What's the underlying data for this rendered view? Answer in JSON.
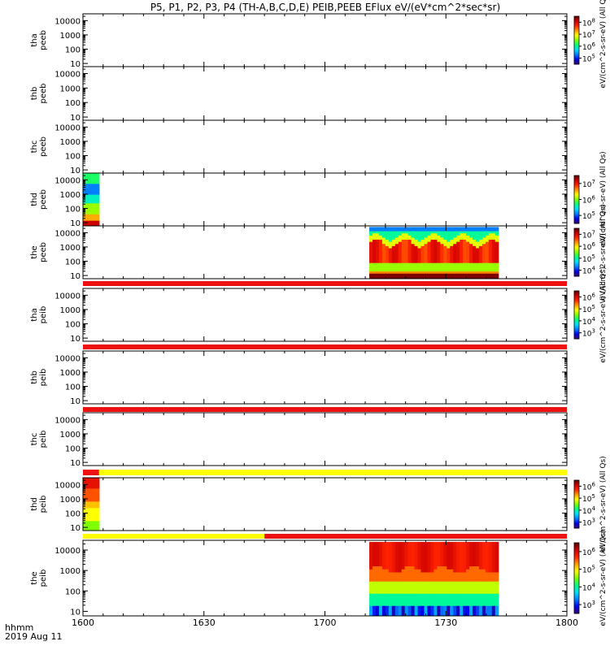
{
  "chart_data": {
    "type": "heatmap",
    "title": "P5, P1, P2, P3, P4 (TH-A,B,C,D,E) PEIB,PEEB EFlux eV/(eV*cm^2*sec*sr)",
    "x_axis": {
      "ticks": [
        "1600",
        "1630",
        "1700",
        "1730",
        "1800"
      ],
      "unit_label": "hhmm",
      "date_label": "2019 Aug 11",
      "range_minutes": [
        0,
        120
      ]
    },
    "y_axis": {
      "ticks": [
        "10",
        "100",
        "1000",
        "10000"
      ],
      "scale": "log",
      "unit": "eV"
    },
    "panels": [
      {
        "probe": "tha",
        "species": "peeb",
        "flag_above": null,
        "data_blocks": [],
        "colorbar": {
          "ticks": [
            "10^5",
            "10^6",
            "10^7",
            "10^8"
          ],
          "label": "eV/(cm^2-s-sr-eV) (All Qs)"
        }
      },
      {
        "probe": "thb",
        "species": "peeb",
        "flag_above": null,
        "data_blocks": [],
        "colorbar": null
      },
      {
        "probe": "thc",
        "species": "peeb",
        "flag_above": null,
        "data_blocks": [],
        "colorbar": null
      },
      {
        "probe": "thd",
        "species": "peeb",
        "flag_above": null,
        "data_blocks": [
          {
            "x_start": 0,
            "x_end": 4,
            "profile": "thd_peeb"
          }
        ],
        "colorbar": {
          "ticks": [
            "10^5",
            "10^6",
            "10^7"
          ],
          "label": "eV/(cm^2-s-sr-eV) (All Qs)"
        }
      },
      {
        "probe": "the",
        "species": "peeb",
        "flag_above": null,
        "data_blocks": [
          {
            "x_start": 71,
            "x_end": 103,
            "profile": "the_peeb"
          }
        ],
        "colorbar": {
          "ticks": [
            "10^4",
            "10^5",
            "10^6",
            "10^7"
          ],
          "label": "eV/(cm^2-s-sr-eV) (All Qs)"
        }
      },
      {
        "probe": "tha",
        "species": "peib",
        "flag_above": [
          {
            "x_start": 0,
            "x_end": 120,
            "color": "#ee1111"
          }
        ],
        "data_blocks": [],
        "colorbar": {
          "ticks": [
            "10^3",
            "10^4",
            "10^5",
            "10^6"
          ],
          "label": "eV/(cm^2-s-sr-eV) (All Qs)"
        }
      },
      {
        "probe": "thb",
        "species": "peib",
        "flag_above": [
          {
            "x_start": 0,
            "x_end": 120,
            "color": "#ee1111"
          }
        ],
        "data_blocks": [],
        "colorbar": null
      },
      {
        "probe": "thc",
        "species": "peib",
        "flag_above": [
          {
            "x_start": 0,
            "x_end": 120,
            "color": "#ee1111"
          }
        ],
        "data_blocks": [],
        "colorbar": null
      },
      {
        "probe": "thd",
        "species": "peib",
        "flag_above": [
          {
            "x_start": 0,
            "x_end": 4,
            "color": "#ee1111"
          },
          {
            "x_start": 4,
            "x_end": 120,
            "color": "#ffff00"
          }
        ],
        "data_blocks": [
          {
            "x_start": 0,
            "x_end": 4,
            "profile": "thd_peib"
          }
        ],
        "colorbar": {
          "ticks": [
            "10^3",
            "10^4",
            "10^5",
            "10^6"
          ],
          "label": "eV/(cm^2-s-sr-eV) (All Qs)"
        }
      },
      {
        "probe": "the",
        "species": "peib",
        "flag_above": [
          {
            "x_start": 0,
            "x_end": 45,
            "color": "#ffff00"
          },
          {
            "x_start": 45,
            "x_end": 120,
            "color": "#ee1111"
          }
        ],
        "data_blocks": [
          {
            "x_start": 71,
            "x_end": 103,
            "profile": "the_peib"
          }
        ],
        "colorbar": {
          "ticks": [
            "10^3",
            "10^4",
            "10^5",
            "10^6"
          ],
          "label": "eV/(cm^2-s-sr-eV) (All Qs)"
        }
      }
    ],
    "colormap": [
      "#3a0a6e",
      "#0000ee",
      "#0080ff",
      "#00e0ff",
      "#00ff7f",
      "#7fff00",
      "#ffff00",
      "#ff9900",
      "#ff2200",
      "#cc0000",
      "#5a0000"
    ]
  }
}
